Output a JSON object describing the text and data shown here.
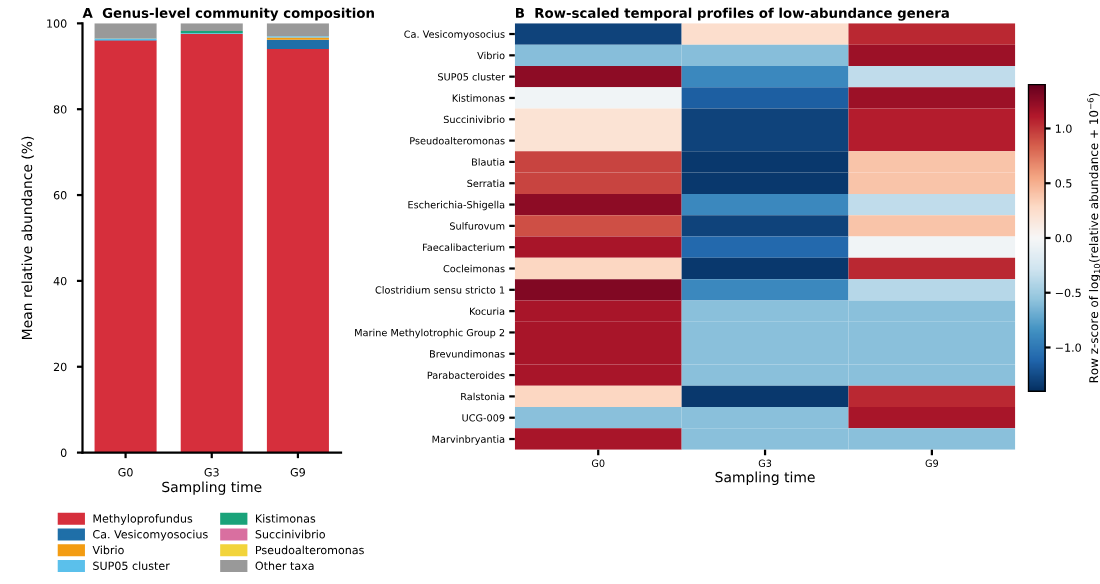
{
  "chart_data": [
    {
      "type": "bar",
      "title": "A  Genus-level community composition",
      "xlabel": "Sampling time",
      "ylabel": "Mean relative abundance (%)",
      "categories": [
        "G0",
        "G3",
        "G9"
      ],
      "stacked": true,
      "ylim": [
        0,
        100
      ],
      "yticks": [
        0,
        20,
        40,
        60,
        80,
        100
      ],
      "legend": "bottom",
      "grid": false,
      "series": [
        {
          "name": "Methyloprofundus",
          "color": "#d62f3c",
          "values": [
            96,
            97.5,
            94
          ]
        },
        {
          "name": "Ca. Vesicomyosocius",
          "color": "#1f6fa8",
          "values": [
            0.1,
            0,
            2.2
          ]
        },
        {
          "name": "Vibrio",
          "color": "#f39c12",
          "values": [
            0,
            0,
            0.5
          ]
        },
        {
          "name": "SUP05 cluster",
          "color": "#5bc0eb",
          "values": [
            0.3,
            0.2,
            0.3
          ]
        },
        {
          "name": "Kistimonas",
          "color": "#1aa37a",
          "values": [
            0.1,
            0.5,
            0
          ]
        },
        {
          "name": "Succinivibrio",
          "color": "#d96fa0",
          "values": [
            null,
            0,
            0
          ]
        },
        {
          "name": "Pseudoalteromonas",
          "color": "#f2d43b",
          "values": [
            null,
            0,
            0
          ]
        },
        {
          "name": "Other taxa",
          "color": "#999999",
          "values": [
            3.5,
            1.8,
            3.0
          ]
        }
      ]
    },
    {
      "type": "heatmap",
      "title": "B  Row-scaled temporal profiles of low-abundance genera",
      "xlabel": "Sampling time",
      "clabel": "Row z-score of log$_{10}$(relative abundance + 10$^{−6}$)",
      "categories": [
        "G0",
        "G3",
        "G9"
      ],
      "y_categories": [
        "Ca. Vesicomyosocius",
        "Vibrio",
        "SUP05 cluster",
        "Kistimonas",
        "Succinivibrio",
        "Pseudoalteromonas",
        "Blautia",
        "Serratia",
        "Escherichia-Shigella",
        "Sulfurovum",
        "Faecalibacterium",
        "Cocleimonas",
        "Clostridium sensu stricto 1",
        "Kocuria",
        "Marine Methylotrophic Group 2",
        "Brevundimonas",
        "Parabacteroides",
        "Ralstonia",
        "UCG-009",
        "Marvinbryantia"
      ],
      "cells": [
        [
          -1.3,
          0.25,
          1.05
        ],
        [
          -0.6,
          -0.6,
          1.2
        ],
        [
          1.25,
          -0.9,
          -0.35
        ],
        [
          -0.05,
          -1.15,
          1.2
        ],
        [
          0.2,
          -1.3,
          1.1
        ],
        [
          0.2,
          -1.3,
          1.1
        ],
        [
          0.95,
          -1.35,
          0.4
        ],
        [
          0.95,
          -1.35,
          0.4
        ],
        [
          1.25,
          -0.9,
          -0.35
        ],
        [
          0.9,
          -1.3,
          0.4
        ],
        [
          1.15,
          -1.1,
          -0.05
        ],
        [
          0.3,
          -1.35,
          1.05
        ],
        [
          1.3,
          -0.9,
          -0.4
        ],
        [
          1.15,
          -0.58,
          -0.58
        ],
        [
          1.15,
          -0.58,
          -0.58
        ],
        [
          1.15,
          -0.58,
          -0.58
        ],
        [
          1.15,
          -0.58,
          -0.58
        ],
        [
          0.3,
          -1.35,
          1.05
        ],
        [
          -0.58,
          -0.58,
          1.15
        ],
        [
          1.15,
          -0.58,
          -0.58
        ]
      ],
      "clim": [
        -1.4,
        1.4
      ],
      "cticks": [
        {
          "value": -1,
          "label": "−1.0"
        },
        {
          "value": -0.5,
          "label": "−0.5"
        },
        {
          "value": 0,
          "label": "0.0"
        },
        {
          "value": 0.5,
          "label": "0.5"
        },
        {
          "value": 1,
          "label": "1.0"
        }
      ]
    }
  ]
}
